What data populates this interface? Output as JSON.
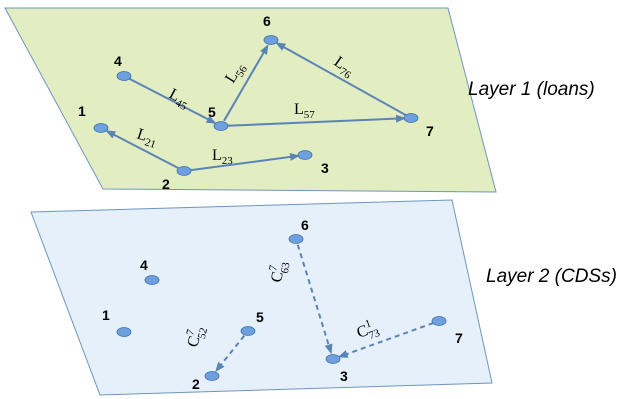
{
  "layers": [
    {
      "title": "Layer 1 (loans)",
      "fill": "#e3edc2",
      "nodes": [
        {
          "id": "1",
          "label": "1"
        },
        {
          "id": "2",
          "label": "2"
        },
        {
          "id": "3",
          "label": "3"
        },
        {
          "id": "4",
          "label": "4"
        },
        {
          "id": "5",
          "label": "5"
        },
        {
          "id": "6",
          "label": "6"
        },
        {
          "id": "7",
          "label": "7"
        }
      ],
      "edges": [
        {
          "id": "L21",
          "from": "2",
          "to": "1",
          "base": "L",
          "sub": "21",
          "sup": "",
          "style": "solid"
        },
        {
          "id": "L23",
          "from": "2",
          "to": "3",
          "base": "L",
          "sub": "23",
          "sup": "",
          "style": "solid"
        },
        {
          "id": "L45",
          "from": "4",
          "to": "5",
          "base": "L",
          "sub": "45",
          "sup": "",
          "style": "solid"
        },
        {
          "id": "L56",
          "from": "5",
          "to": "6",
          "base": "L",
          "sub": "56",
          "sup": "",
          "style": "solid"
        },
        {
          "id": "L57",
          "from": "5",
          "to": "7",
          "base": "L",
          "sub": "57",
          "sup": "",
          "style": "solid"
        },
        {
          "id": "L76",
          "from": "7",
          "to": "6",
          "base": "L",
          "sub": "76",
          "sup": "",
          "style": "solid"
        }
      ]
    },
    {
      "title": "Layer 2 (CDSs)",
      "fill": "#e6f0fb",
      "nodes": [
        {
          "id": "1",
          "label": "1"
        },
        {
          "id": "2",
          "label": "2"
        },
        {
          "id": "3",
          "label": "3"
        },
        {
          "id": "4",
          "label": "4"
        },
        {
          "id": "5",
          "label": "5"
        },
        {
          "id": "6",
          "label": "6"
        },
        {
          "id": "7",
          "label": "7"
        }
      ],
      "edges": [
        {
          "id": "C52",
          "from": "5",
          "to": "2",
          "base": "C",
          "sub": "52",
          "sup": "7",
          "style": "dashed"
        },
        {
          "id": "C63",
          "from": "6",
          "to": "3",
          "base": "C",
          "sub": "63",
          "sup": "7",
          "style": "dashed"
        },
        {
          "id": "C73",
          "from": "7",
          "to": "3",
          "base": "C",
          "sub": "73",
          "sup": "1",
          "style": "dashed"
        }
      ]
    }
  ],
  "colors": {
    "edge": "#5a84b5",
    "node": "#6e9fde",
    "nodeStroke": "#3f6ea8",
    "border": "#6e96bf"
  }
}
